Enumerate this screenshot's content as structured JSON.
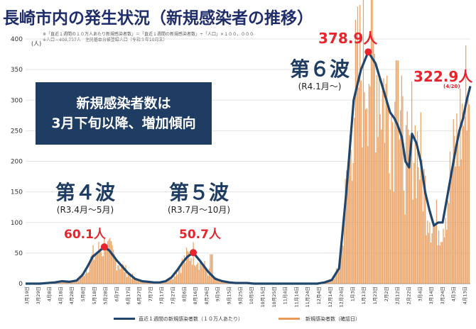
{
  "title": "長崎市内の発生状況（新規感染者の推移）",
  "notes": {
    "line1": "※「直近１週間の１０万人あたり新規感染者数」＝「直近１週間の新規感染者数」÷「人口」×１００，０００",
    "line2": "※人口＝406,757人　住民基本台帳登録人口（令和３年10月末）"
  },
  "summary_box": {
    "line1": "新規感染者数は",
    "line2": "3月下旬以降、増加傾向"
  },
  "waves": [
    {
      "name": "第４波",
      "range": "(R3.4月～5月)",
      "peak_label": "60.1人"
    },
    {
      "name": "第５波",
      "range": "(R3.7月～10月)",
      "peak_label": "50.7人"
    },
    {
      "name": "第６波",
      "range": "(R4.1月～)",
      "peak_label": "378.9人"
    }
  ],
  "latest": {
    "value_label": "322.9人",
    "date_label": "(4/20)"
  },
  "legend": {
    "line_label": "直近１週間の新規感染者数（１０万人あたり）",
    "bar_label": "新規感染者数（確認日）"
  },
  "colors": {
    "line": "#21466e",
    "bar": "#e89a58",
    "accent": "#e8242c",
    "title": "#1f2d6b"
  },
  "chart_data": {
    "type": "line",
    "title": "長崎市内の発生状況（新規感染者の推移）",
    "ylabel": "(人)",
    "ylim": [
      0,
      400
    ],
    "yticks": [
      0,
      50,
      100,
      150,
      200,
      250,
      300,
      350,
      400
    ],
    "xlim": [
      0,
      61
    ],
    "categories": [
      "3月19日",
      "3月29日",
      "4月8日",
      "4月18日",
      "4月28日",
      "5月8日",
      "5月18日",
      "5月28日",
      "6月7日",
      "6月17日",
      "6月27日",
      "7月7日",
      "7月17日",
      "7月27日",
      "8月6日",
      "8月16日",
      "8月26日",
      "9月5日",
      "9月15日",
      "9月25日",
      "10月5日",
      "10月15日",
      "10月25日",
      "11月4日",
      "11月14日",
      "11月24日",
      "12月4日",
      "12月14日",
      "12月24日",
      "1月3日",
      "1月13日",
      "1月23日",
      "2月2日",
      "2月12日",
      "2月22日",
      "3月4日",
      "3月14日",
      "3月24日",
      "4月3日",
      "4月13日"
    ],
    "series": [
      {
        "name": "直近１週間の新規感染者数（１０万人あたり）",
        "kind": "line",
        "x": [
          0,
          2,
          3,
          4,
          5,
          6,
          7,
          7.8,
          8.5,
          9.2,
          10,
          10.8,
          11.5,
          12.5,
          14,
          15,
          16,
          16.8,
          17.6,
          18.4,
          19.2,
          20,
          20.8,
          21.5,
          22.2,
          23,
          24,
          25,
          26,
          27,
          28,
          28.8,
          29.6,
          30.4,
          31.3,
          32.2,
          33,
          34,
          35,
          36,
          37,
          38,
          38.6,
          39.2,
          40,
          41,
          42,
          43,
          44,
          45,
          46,
          47,
          48,
          49,
          50,
          50.6,
          51,
          51.6,
          52.1,
          52.6,
          53,
          53.6,
          54.2,
          54.8,
          55.4,
          56,
          56.6,
          57.2,
          57.8,
          58.4,
          59,
          59.5,
          60,
          60.5,
          61
        ],
        "values": [
          0,
          0,
          1,
          2,
          4,
          3,
          5,
          14,
          28,
          44,
          52,
          60.1,
          54,
          38,
          18,
          8,
          4,
          3,
          2,
          2,
          4,
          10,
          22,
          34,
          44,
          50.7,
          36,
          20,
          8,
          4,
          2,
          1,
          1,
          1,
          0,
          0,
          0,
          0,
          0,
          0,
          0,
          0,
          0,
          0,
          0,
          2,
          6,
          25,
          150,
          300,
          350,
          378.9,
          360,
          320,
          280,
          270,
          260,
          240,
          200,
          190,
          245,
          230,
          200,
          150,
          120,
          95,
          100,
          100,
          140,
          180,
          220,
          250,
          270,
          300,
          322.9
        ]
      },
      {
        "name": "新規感染者数（確認日）",
        "kind": "bar",
        "peaks": [
          {
            "x": 11,
            "value": 58
          },
          {
            "x": 25.5,
            "value": 48
          },
          {
            "x": 51,
            "value": 365
          },
          {
            "x": 60.5,
            "value": 250
          }
        ]
      }
    ],
    "annotations": [
      {
        "x": 10.8,
        "value": 60.1,
        "text": "60.1人"
      },
      {
        "x": 23,
        "value": 50.7,
        "text": "50.7人"
      },
      {
        "x": 47,
        "value": 378.9,
        "text": "378.9人"
      },
      {
        "x": 61,
        "value": 322.9,
        "text": "322.9人"
      }
    ]
  }
}
